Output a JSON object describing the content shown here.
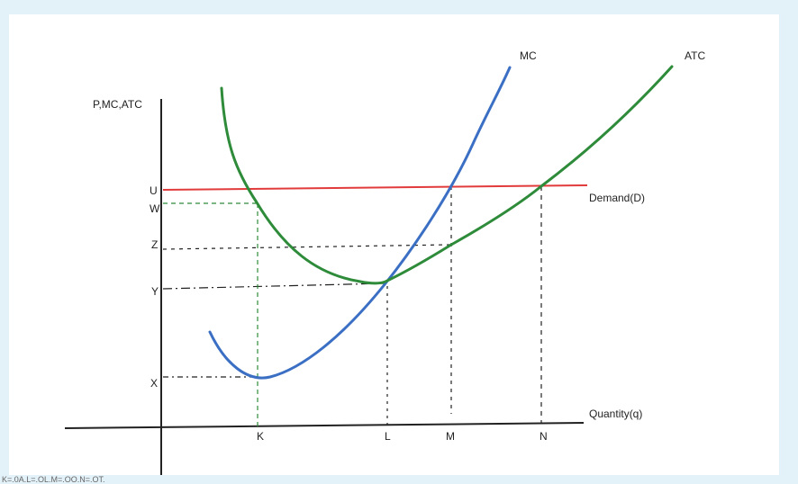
{
  "diagram": {
    "y_axis_label": "P,MC,ATC",
    "x_axis_label": "Quantity(q)",
    "curves": {
      "mc": "MC",
      "atc": "ATC",
      "demand": "Demand(D)"
    },
    "y_ticks": {
      "u": "U",
      "w": "W",
      "z": "Z",
      "y": "Y",
      "x": "X"
    },
    "x_ticks": {
      "k": "K",
      "l": "L",
      "m": "M",
      "n": "N"
    },
    "colors": {
      "mc": "#3b6fc4",
      "atc": "#2e8b3a",
      "demand": "#e23b3b",
      "guide_green": "#2e8b3a",
      "guide_black": "#222222",
      "axis": "#222222"
    }
  },
  "caption": {
    "text": "K=.0A.L=.OL.M=.OO.N=.OT."
  }
}
